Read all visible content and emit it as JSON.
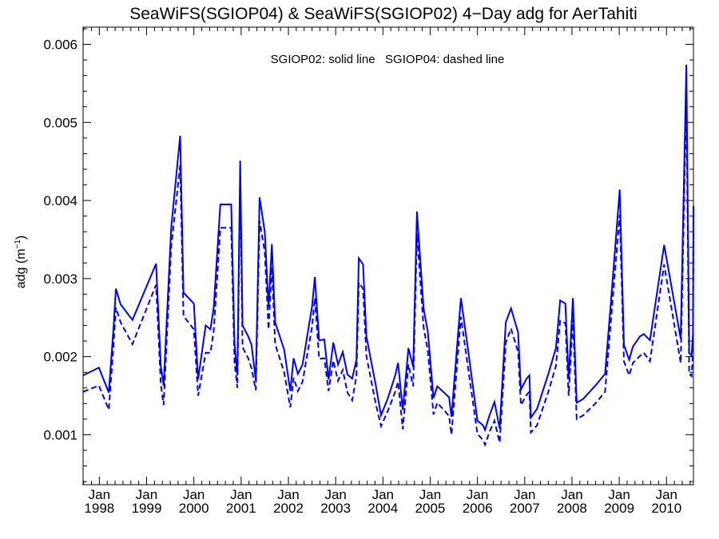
{
  "chart_data": {
    "type": "line",
    "title": "SeaWiFS(SGIOP04) & SeaWiFS(SGIOP02) 4−Day adg for AerTahiti",
    "ylabel": "adg (m",
    "ylabel_sup": "−1",
    "ylabel_close": ")",
    "annotation": "SGIOP02: solid line   SGIOP04: dashed line",
    "color": "#0000ff",
    "xlim": [
      1997.656,
      2010.57
    ],
    "ylim": [
      0.00036,
      0.00622
    ],
    "yticks": [
      {
        "value": 0.001,
        "label": "0.001"
      },
      {
        "value": 0.002,
        "label": "0.002"
      },
      {
        "value": 0.003,
        "label": "0.003"
      },
      {
        "value": 0.004,
        "label": "0.004"
      },
      {
        "value": 0.005,
        "label": "0.005"
      },
      {
        "value": 0.006,
        "label": "0.006"
      }
    ],
    "xticks": [
      {
        "value": 1998,
        "month": "Jan",
        "year": "1998"
      },
      {
        "value": 1999,
        "month": "Jan",
        "year": "1999"
      },
      {
        "value": 2000,
        "month": "Jan",
        "year": "2000"
      },
      {
        "value": 2001,
        "month": "Jan",
        "year": "2001"
      },
      {
        "value": 2002,
        "month": "Jan",
        "year": "2002"
      },
      {
        "value": 2003,
        "month": "Jan",
        "year": "2003"
      },
      {
        "value": 2004,
        "month": "Jan",
        "year": "2004"
      },
      {
        "value": 2005,
        "month": "Jan",
        "year": "2005"
      },
      {
        "value": 2006,
        "month": "Jan",
        "year": "2006"
      },
      {
        "value": 2007,
        "month": "Jan",
        "year": "2007"
      },
      {
        "value": 2008,
        "month": "Jan",
        "year": "2008"
      },
      {
        "value": 2009,
        "month": "Jan",
        "year": "2009"
      },
      {
        "value": 2010,
        "month": "Jan",
        "year": "2010"
      }
    ],
    "series": [
      {
        "name": "SGIOP02",
        "style": "solid",
        "points": [
          [
            1997.656,
            0.00176
          ],
          [
            1997.99,
            0.00186
          ],
          [
            1998.2,
            0.00154
          ],
          [
            1998.3,
            0.00237
          ],
          [
            1998.35,
            0.00287
          ],
          [
            1998.45,
            0.00267
          ],
          [
            1998.7,
            0.00247
          ],
          [
            1999.2,
            0.00319
          ],
          [
            1999.3,
            0.00188
          ],
          [
            1999.36,
            0.00163
          ],
          [
            1999.52,
            0.00365
          ],
          [
            1999.71,
            0.00483
          ],
          [
            1999.78,
            0.00282
          ],
          [
            2000.0,
            0.00268
          ],
          [
            2000.09,
            0.00171
          ],
          [
            2000.25,
            0.0024
          ],
          [
            2000.35,
            0.00235
          ],
          [
            2000.42,
            0.00263
          ],
          [
            2000.56,
            0.00395
          ],
          [
            2000.79,
            0.00395
          ],
          [
            2000.86,
            0.00216
          ],
          [
            2000.92,
            0.00176
          ],
          [
            2000.98,
            0.00451
          ],
          [
            2001.03,
            0.0024
          ],
          [
            2001.15,
            0.00226
          ],
          [
            2001.22,
            0.00215
          ],
          [
            2001.31,
            0.0017
          ],
          [
            2001.39,
            0.00404
          ],
          [
            2001.5,
            0.0036
          ],
          [
            2001.58,
            0.00263
          ],
          [
            2001.65,
            0.00344
          ],
          [
            2001.72,
            0.00244
          ],
          [
            2001.91,
            0.00209
          ],
          [
            2002.04,
            0.00156
          ],
          [
            2002.11,
            0.00198
          ],
          [
            2002.2,
            0.00178
          ],
          [
            2002.3,
            0.0019
          ],
          [
            2002.5,
            0.00264
          ],
          [
            2002.56,
            0.00302
          ],
          [
            2002.65,
            0.00221
          ],
          [
            2002.76,
            0.00222
          ],
          [
            2002.85,
            0.00171
          ],
          [
            2002.95,
            0.00218
          ],
          [
            2003.05,
            0.0019
          ],
          [
            2003.15,
            0.00206
          ],
          [
            2003.25,
            0.00177
          ],
          [
            2003.35,
            0.00172
          ],
          [
            2003.44,
            0.00196
          ],
          [
            2003.49,
            0.00326
          ],
          [
            2003.58,
            0.00318
          ],
          [
            2003.65,
            0.00226
          ],
          [
            2003.85,
            0.00163
          ],
          [
            2003.96,
            0.00125
          ],
          [
            2004.1,
            0.00146
          ],
          [
            2004.26,
            0.00176
          ],
          [
            2004.32,
            0.00192
          ],
          [
            2004.42,
            0.00132
          ],
          [
            2004.54,
            0.00211
          ],
          [
            2004.64,
            0.00187
          ],
          [
            2004.72,
            0.00386
          ],
          [
            2004.86,
            0.00262
          ],
          [
            2004.95,
            0.00232
          ],
          [
            2005.07,
            0.00147
          ],
          [
            2005.15,
            0.00162
          ],
          [
            2005.4,
            0.00148
          ],
          [
            2005.45,
            0.00123
          ],
          [
            2005.65,
            0.00275
          ],
          [
            2005.81,
            0.00205
          ],
          [
            2006.0,
            0.00118
          ],
          [
            2006.12,
            0.00112
          ],
          [
            2006.16,
            0.00106
          ],
          [
            2006.25,
            0.00124
          ],
          [
            2006.36,
            0.00142
          ],
          [
            2006.47,
            0.00108
          ],
          [
            2006.6,
            0.00244
          ],
          [
            2006.71,
            0.00262
          ],
          [
            2006.86,
            0.00231
          ],
          [
            2006.92,
            0.00158
          ],
          [
            2007.04,
            0.00172
          ],
          [
            2007.1,
            0.00176
          ],
          [
            2007.13,
            0.00122
          ],
          [
            2007.26,
            0.00133
          ],
          [
            2007.5,
            0.00178
          ],
          [
            2007.66,
            0.00211
          ],
          [
            2007.75,
            0.00272
          ],
          [
            2007.86,
            0.00268
          ],
          [
            2007.93,
            0.00171
          ],
          [
            2008.02,
            0.00275
          ],
          [
            2008.1,
            0.00141
          ],
          [
            2008.24,
            0.00146
          ],
          [
            2008.51,
            0.00164
          ],
          [
            2008.7,
            0.00178
          ],
          [
            2008.82,
            0.00267
          ],
          [
            2009.01,
            0.00414
          ],
          [
            2009.1,
            0.00215
          ],
          [
            2009.21,
            0.00196
          ],
          [
            2009.29,
            0.00213
          ],
          [
            2009.44,
            0.00226
          ],
          [
            2009.52,
            0.00229
          ],
          [
            2009.65,
            0.00221
          ],
          [
            2009.95,
            0.00343
          ],
          [
            2010.3,
            0.00223
          ],
          [
            2010.42,
            0.00574
          ],
          [
            2010.48,
            0.00205
          ],
          [
            2010.53,
            0.00201
          ],
          [
            2010.56,
            0.00229
          ],
          [
            2010.57,
            0.00393
          ]
        ]
      },
      {
        "name": "SGIOP04",
        "style": "dashed",
        "points": [
          [
            1997.656,
            0.00155
          ],
          [
            1997.99,
            0.00163
          ],
          [
            1998.2,
            0.00132
          ],
          [
            1998.3,
            0.00215
          ],
          [
            1998.35,
            0.00263
          ],
          [
            1998.45,
            0.00244
          ],
          [
            1998.7,
            0.00216
          ],
          [
            1999.2,
            0.00292
          ],
          [
            1999.3,
            0.00165
          ],
          [
            1999.36,
            0.00138
          ],
          [
            1999.52,
            0.00341
          ],
          [
            1999.71,
            0.00445
          ],
          [
            1999.78,
            0.00252
          ],
          [
            2000.0,
            0.00235
          ],
          [
            2000.09,
            0.0015
          ],
          [
            2000.25,
            0.00205
          ],
          [
            2000.35,
            0.00205
          ],
          [
            2000.42,
            0.00233
          ],
          [
            2000.56,
            0.00365
          ],
          [
            2000.79,
            0.00365
          ],
          [
            2000.86,
            0.00193
          ],
          [
            2000.92,
            0.0016
          ],
          [
            2000.98,
            0.00425
          ],
          [
            2001.03,
            0.00212
          ],
          [
            2001.15,
            0.00198
          ],
          [
            2001.22,
            0.00185
          ],
          [
            2001.31,
            0.00157
          ],
          [
            2001.39,
            0.00374
          ],
          [
            2001.5,
            0.00334
          ],
          [
            2001.58,
            0.00235
          ],
          [
            2001.65,
            0.00315
          ],
          [
            2001.72,
            0.00216
          ],
          [
            2001.91,
            0.0018
          ],
          [
            2002.04,
            0.00135
          ],
          [
            2002.11,
            0.00173
          ],
          [
            2002.2,
            0.00156
          ],
          [
            2002.3,
            0.00168
          ],
          [
            2002.5,
            0.00238
          ],
          [
            2002.56,
            0.00275
          ],
          [
            2002.65,
            0.00197
          ],
          [
            2002.76,
            0.00198
          ],
          [
            2002.85,
            0.00156
          ],
          [
            2002.95,
            0.00195
          ],
          [
            2003.05,
            0.00169
          ],
          [
            2003.15,
            0.00183
          ],
          [
            2003.25,
            0.00154
          ],
          [
            2003.35,
            0.00144
          ],
          [
            2003.44,
            0.00175
          ],
          [
            2003.49,
            0.00295
          ],
          [
            2003.58,
            0.00287
          ],
          [
            2003.65,
            0.00201
          ],
          [
            2003.85,
            0.00139
          ],
          [
            2003.96,
            0.00111
          ],
          [
            2004.1,
            0.0013
          ],
          [
            2004.26,
            0.00155
          ],
          [
            2004.32,
            0.00168
          ],
          [
            2004.42,
            0.00107
          ],
          [
            2004.54,
            0.0019
          ],
          [
            2004.64,
            0.00162
          ],
          [
            2004.72,
            0.00358
          ],
          [
            2004.86,
            0.00238
          ],
          [
            2004.95,
            0.00207
          ],
          [
            2005.07,
            0.00126
          ],
          [
            2005.15,
            0.00141
          ],
          [
            2005.4,
            0.00124
          ],
          [
            2005.45,
            0.001
          ],
          [
            2005.65,
            0.00251
          ],
          [
            2005.81,
            0.00182
          ],
          [
            2006.0,
            0.00101
          ],
          [
            2006.12,
            0.00093
          ],
          [
            2006.16,
            0.00087
          ],
          [
            2006.25,
            0.00103
          ],
          [
            2006.36,
            0.00118
          ],
          [
            2006.47,
            0.0009
          ],
          [
            2006.6,
            0.00218
          ],
          [
            2006.71,
            0.00236
          ],
          [
            2006.86,
            0.00206
          ],
          [
            2006.92,
            0.00138
          ],
          [
            2007.04,
            0.00151
          ],
          [
            2007.1,
            0.00155
          ],
          [
            2007.13,
            0.00103
          ],
          [
            2007.26,
            0.00112
          ],
          [
            2007.5,
            0.00155
          ],
          [
            2007.66,
            0.00188
          ],
          [
            2007.75,
            0.00246
          ],
          [
            2007.86,
            0.00243
          ],
          [
            2007.93,
            0.0015
          ],
          [
            2008.02,
            0.00248
          ],
          [
            2008.1,
            0.0012
          ],
          [
            2008.24,
            0.00125
          ],
          [
            2008.51,
            0.00141
          ],
          [
            2008.7,
            0.00155
          ],
          [
            2008.82,
            0.00243
          ],
          [
            2009.01,
            0.00382
          ],
          [
            2009.1,
            0.00194
          ],
          [
            2009.21,
            0.00176
          ],
          [
            2009.29,
            0.00192
          ],
          [
            2009.44,
            0.00201
          ],
          [
            2009.52,
            0.00205
          ],
          [
            2009.65,
            0.00194
          ],
          [
            2009.95,
            0.00318
          ],
          [
            2010.3,
            0.00192
          ],
          [
            2010.42,
            0.00535
          ],
          [
            2010.48,
            0.00178
          ],
          [
            2010.53,
            0.00175
          ],
          [
            2010.56,
            0.00205
          ],
          [
            2010.57,
            0.00362
          ]
        ]
      }
    ]
  }
}
